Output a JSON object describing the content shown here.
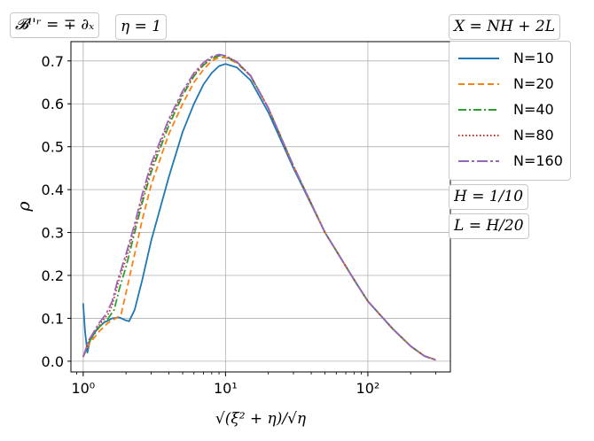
{
  "labels": {
    "top_left": "𝓑ˡ'ʳ = ∓ ∂ₓ",
    "eta": "η = 1",
    "x_def": "X = NH + 2L",
    "h_def": "H = 1/10",
    "l_def": "L = H/20"
  },
  "chart_data": {
    "type": "line",
    "xscale": "log",
    "xlabel": "√(ξ² + η)/√η",
    "ylabel": "ρ",
    "xlim": [
      0.82,
      380
    ],
    "ylim": [
      -0.025,
      0.745
    ],
    "xticks": [
      {
        "value": 1,
        "label": "10⁰"
      },
      {
        "value": 10,
        "label": "10¹"
      },
      {
        "value": 100,
        "label": "10²"
      }
    ],
    "yticks": [
      0.0,
      0.1,
      0.2,
      0.3,
      0.4,
      0.5,
      0.6,
      0.7
    ],
    "ytick_labels": [
      "0.0",
      "0.1",
      "0.2",
      "0.3",
      "0.4",
      "0.5",
      "0.6",
      "0.7"
    ],
    "grid": true,
    "legend_position": "right, outside",
    "series": [
      {
        "name": "N=10",
        "color": "#1f77b4",
        "dash": "",
        "points": [
          [
            1.0,
            0.135
          ],
          [
            1.03,
            0.07
          ],
          [
            1.07,
            0.02
          ],
          [
            1.12,
            0.05
          ],
          [
            1.25,
            0.075
          ],
          [
            1.4,
            0.09
          ],
          [
            1.6,
            0.1
          ],
          [
            1.8,
            0.102
          ],
          [
            2.0,
            0.095
          ],
          [
            2.1,
            0.093
          ],
          [
            2.3,
            0.12
          ],
          [
            2.6,
            0.19
          ],
          [
            3.0,
            0.28
          ],
          [
            4.0,
            0.43
          ],
          [
            5.0,
            0.535
          ],
          [
            6.0,
            0.6
          ],
          [
            7.0,
            0.645
          ],
          [
            8.0,
            0.672
          ],
          [
            9.0,
            0.688
          ],
          [
            10.0,
            0.693
          ],
          [
            12.0,
            0.685
          ],
          [
            15.0,
            0.655
          ],
          [
            20.0,
            0.58
          ],
          [
            30.0,
            0.45
          ],
          [
            50.0,
            0.3
          ],
          [
            80.0,
            0.19
          ],
          [
            100.0,
            0.14
          ],
          [
            150.0,
            0.075
          ],
          [
            200.0,
            0.035
          ],
          [
            250.0,
            0.012
          ],
          [
            300.0,
            0.003
          ]
        ]
      },
      {
        "name": "N=20",
        "color": "#ff7f0e",
        "dash": "7,4",
        "points": [
          [
            1.0,
            0.01
          ],
          [
            1.1,
            0.04
          ],
          [
            1.3,
            0.07
          ],
          [
            1.5,
            0.09
          ],
          [
            1.7,
            0.1
          ],
          [
            1.85,
            0.11
          ],
          [
            2.0,
            0.16
          ],
          [
            2.3,
            0.25
          ],
          [
            2.6,
            0.33
          ],
          [
            3.0,
            0.41
          ],
          [
            4.0,
            0.53
          ],
          [
            5.0,
            0.6
          ],
          [
            6.0,
            0.65
          ],
          [
            7.0,
            0.68
          ],
          [
            8.0,
            0.7
          ],
          [
            9.0,
            0.708
          ],
          [
            10.0,
            0.708
          ],
          [
            12.0,
            0.695
          ],
          [
            15.0,
            0.665
          ],
          [
            20.0,
            0.59
          ],
          [
            30.0,
            0.455
          ],
          [
            50.0,
            0.3
          ],
          [
            80.0,
            0.19
          ],
          [
            100.0,
            0.14
          ],
          [
            150.0,
            0.075
          ],
          [
            200.0,
            0.035
          ],
          [
            250.0,
            0.012
          ],
          [
            300.0,
            0.003
          ]
        ]
      },
      {
        "name": "N=40",
        "color": "#2ca02c",
        "dash": "9,3,2,3",
        "points": [
          [
            1.0,
            0.01
          ],
          [
            1.1,
            0.045
          ],
          [
            1.3,
            0.08
          ],
          [
            1.5,
            0.1
          ],
          [
            1.65,
            0.12
          ],
          [
            1.8,
            0.17
          ],
          [
            2.0,
            0.22
          ],
          [
            2.3,
            0.3
          ],
          [
            2.6,
            0.37
          ],
          [
            3.0,
            0.44
          ],
          [
            4.0,
            0.55
          ],
          [
            5.0,
            0.62
          ],
          [
            6.0,
            0.665
          ],
          [
            7.0,
            0.69
          ],
          [
            8.0,
            0.705
          ],
          [
            9.0,
            0.712
          ],
          [
            10.0,
            0.71
          ],
          [
            12.0,
            0.697
          ],
          [
            15.0,
            0.665
          ],
          [
            20.0,
            0.59
          ],
          [
            30.0,
            0.455
          ],
          [
            50.0,
            0.3
          ],
          [
            80.0,
            0.19
          ],
          [
            100.0,
            0.14
          ],
          [
            150.0,
            0.075
          ],
          [
            200.0,
            0.035
          ],
          [
            250.0,
            0.012
          ],
          [
            300.0,
            0.003
          ]
        ]
      },
      {
        "name": "N=80",
        "color": "#d62728",
        "dash": "1.5,2.5",
        "points": [
          [
            1.0,
            0.01
          ],
          [
            1.1,
            0.05
          ],
          [
            1.3,
            0.085
          ],
          [
            1.5,
            0.11
          ],
          [
            1.6,
            0.13
          ],
          [
            1.75,
            0.18
          ],
          [
            2.0,
            0.24
          ],
          [
            2.3,
            0.31
          ],
          [
            2.6,
            0.38
          ],
          [
            3.0,
            0.45
          ],
          [
            4.0,
            0.56
          ],
          [
            5.0,
            0.625
          ],
          [
            6.0,
            0.668
          ],
          [
            7.0,
            0.693
          ],
          [
            8.0,
            0.708
          ],
          [
            9.0,
            0.714
          ],
          [
            10.0,
            0.712
          ],
          [
            12.0,
            0.698
          ],
          [
            15.0,
            0.666
          ],
          [
            20.0,
            0.59
          ],
          [
            30.0,
            0.455
          ],
          [
            50.0,
            0.3
          ],
          [
            80.0,
            0.19
          ],
          [
            100.0,
            0.14
          ],
          [
            150.0,
            0.075
          ],
          [
            200.0,
            0.035
          ],
          [
            250.0,
            0.012
          ],
          [
            300.0,
            0.003
          ]
        ]
      },
      {
        "name": "N=160",
        "color": "#9467bd",
        "dash": "12,3,3,3",
        "points": [
          [
            1.0,
            0.01
          ],
          [
            1.1,
            0.05
          ],
          [
            1.3,
            0.09
          ],
          [
            1.45,
            0.11
          ],
          [
            1.6,
            0.14
          ],
          [
            1.75,
            0.19
          ],
          [
            2.0,
            0.25
          ],
          [
            2.3,
            0.32
          ],
          [
            2.6,
            0.39
          ],
          [
            3.0,
            0.46
          ],
          [
            4.0,
            0.565
          ],
          [
            5.0,
            0.63
          ],
          [
            6.0,
            0.672
          ],
          [
            7.0,
            0.696
          ],
          [
            8.0,
            0.71
          ],
          [
            9.0,
            0.715
          ],
          [
            10.0,
            0.712
          ],
          [
            12.0,
            0.698
          ],
          [
            15.0,
            0.666
          ],
          [
            20.0,
            0.59
          ],
          [
            30.0,
            0.455
          ],
          [
            50.0,
            0.3
          ],
          [
            80.0,
            0.19
          ],
          [
            100.0,
            0.14
          ],
          [
            150.0,
            0.075
          ],
          [
            200.0,
            0.035
          ],
          [
            250.0,
            0.012
          ],
          [
            300.0,
            0.003
          ]
        ]
      }
    ]
  }
}
